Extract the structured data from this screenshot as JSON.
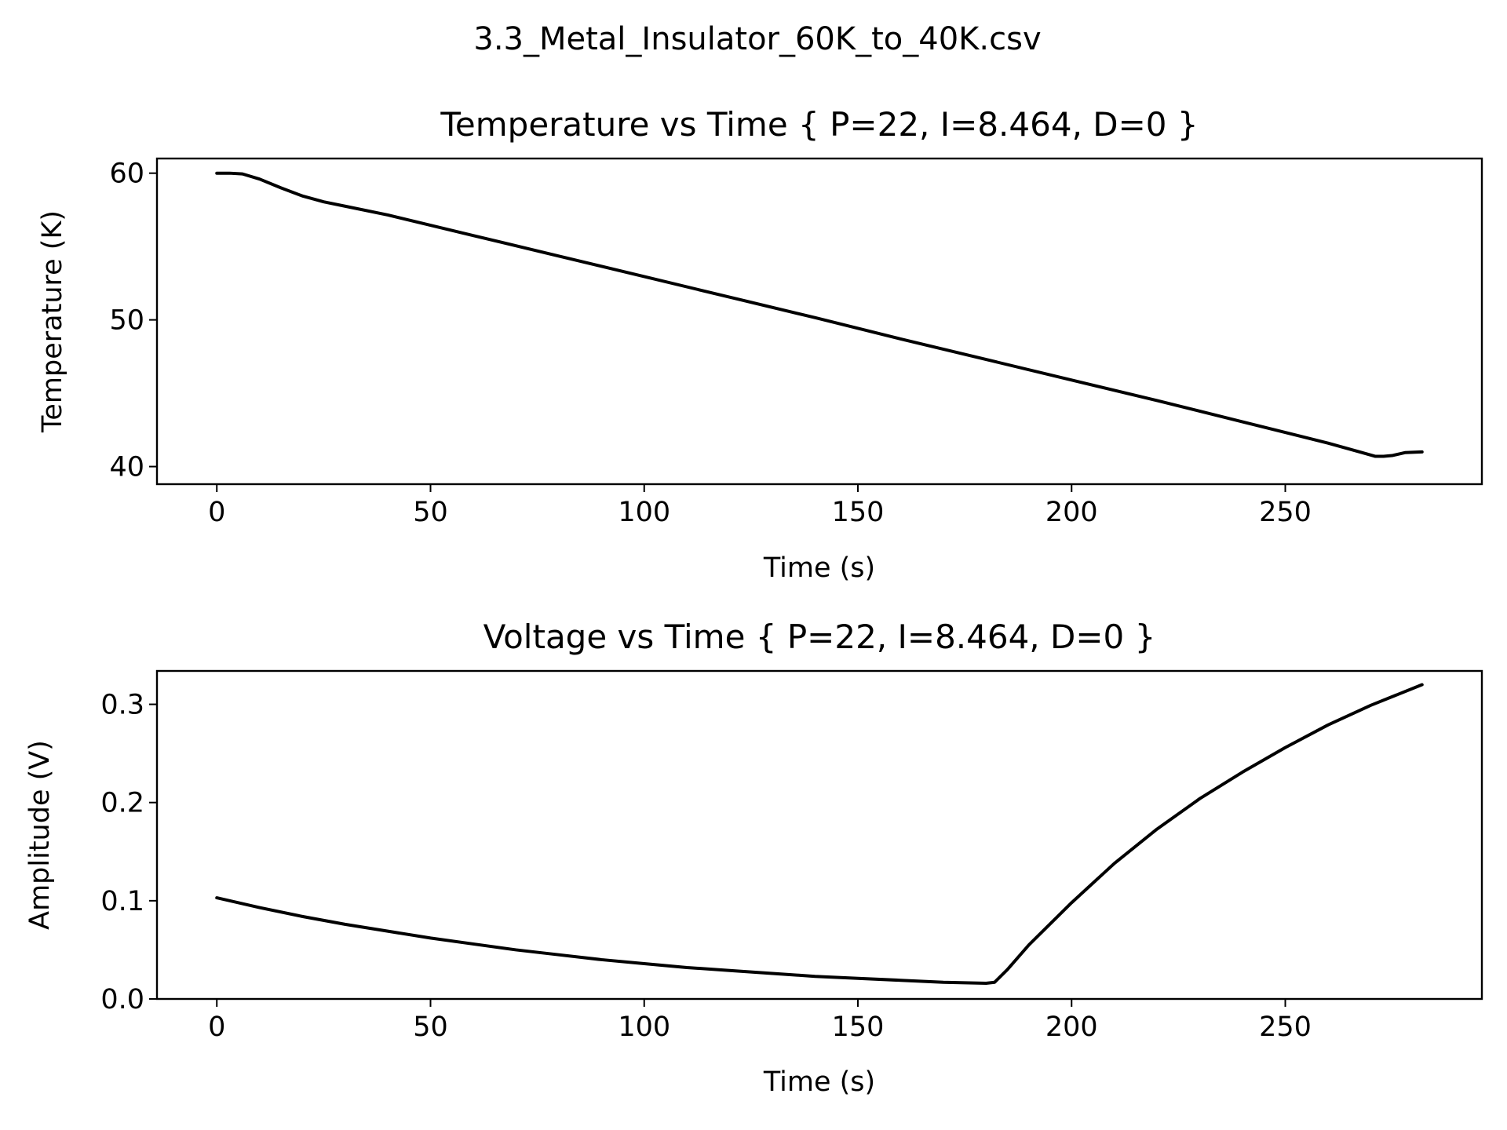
{
  "figure": {
    "suptitle": "3.3_Metal_Insulator_60K_to_40K.csv",
    "line_color": "#000000"
  },
  "chart_data": [
    {
      "type": "line",
      "title": "Temperature vs Time { P=22, I=8.464, D=0 }",
      "xlabel": "Time (s)",
      "ylabel": "Temperature (K)",
      "xlim": [
        -14,
        296
      ],
      "ylim": [
        38.8,
        61.0
      ],
      "xticks": [
        0,
        50,
        100,
        150,
        200,
        250
      ],
      "yticks": [
        40,
        50,
        60
      ],
      "grid": false,
      "series": [
        {
          "x": [
            0,
            3,
            6,
            10,
            15,
            20,
            25,
            30,
            40,
            50,
            60,
            80,
            100,
            120,
            140,
            160,
            180,
            200,
            220,
            240,
            260,
            268,
            271,
            273,
            275,
            278,
            282
          ],
          "y": [
            60.0,
            60.0,
            59.95,
            59.6,
            59.0,
            58.45,
            58.05,
            57.75,
            57.15,
            56.45,
            55.75,
            54.35,
            52.95,
            51.55,
            50.15,
            48.7,
            47.3,
            45.9,
            44.5,
            43.05,
            41.6,
            40.95,
            40.7,
            40.7,
            40.75,
            40.95,
            41.0
          ]
        }
      ]
    },
    {
      "type": "line",
      "title": "Voltage vs Time { P=22, I=8.464, D=0 }",
      "xlabel": "Time (s)",
      "ylabel": "Amplitude (V)",
      "xlim": [
        -14,
        296
      ],
      "ylim": [
        0.0,
        0.334
      ],
      "xticks": [
        0,
        50,
        100,
        150,
        200,
        250
      ],
      "yticks": [
        0.0,
        0.1,
        0.2,
        0.3
      ],
      "yticklabels": [
        "0.0",
        "0.1",
        "0.2",
        "0.3"
      ],
      "grid": false,
      "series": [
        {
          "x": [
            0,
            10,
            20,
            30,
            40,
            50,
            60,
            70,
            80,
            90,
            100,
            110,
            120,
            130,
            140,
            150,
            160,
            170,
            180,
            182,
            185,
            190,
            200,
            210,
            220,
            230,
            240,
            250,
            260,
            270,
            282
          ],
          "y": [
            0.103,
            0.093,
            0.084,
            0.076,
            0.069,
            0.062,
            0.056,
            0.05,
            0.045,
            0.04,
            0.036,
            0.032,
            0.029,
            0.026,
            0.023,
            0.021,
            0.019,
            0.017,
            0.016,
            0.017,
            0.03,
            0.055,
            0.098,
            0.138,
            0.173,
            0.204,
            0.231,
            0.256,
            0.279,
            0.299,
            0.32
          ]
        }
      ]
    }
  ]
}
